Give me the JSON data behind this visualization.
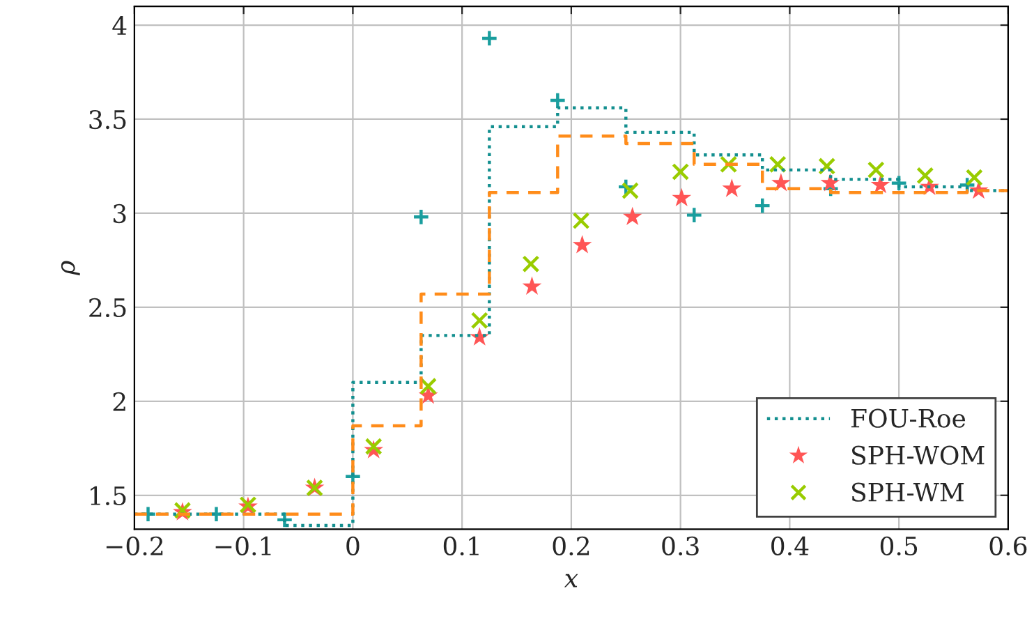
{
  "chart_data": {
    "type": "scatter",
    "xlabel": "x",
    "ylabel": "ρ",
    "xlim": [
      -0.2,
      0.6
    ],
    "ylim": [
      1.32,
      4.1
    ],
    "xticks": [
      {
        "value": -0.2,
        "label": "−0.2"
      },
      {
        "value": -0.1,
        "label": "−0.1"
      },
      0,
      0.1,
      0.2,
      0.3,
      0.4,
      0.5,
      0.6
    ],
    "yticks": [
      1.5,
      2,
      2.5,
      3,
      3.5,
      4
    ],
    "grid": true,
    "legend": "bottom right",
    "series": [
      {
        "name": "FOU-Roe",
        "type": "step",
        "color": "#138f8f",
        "line_style": "dotted",
        "marker": "none",
        "x": [
          -0.2,
          -0.0625,
          0,
          0.0625,
          0.125,
          0.1875,
          0.25,
          0.3125,
          0.375,
          0.4375,
          0.5,
          0.5625,
          0.6
        ],
        "values": [
          1.4,
          1.34,
          2.1,
          2.35,
          3.46,
          3.56,
          3.43,
          3.31,
          3.23,
          3.18,
          3.14,
          3.12,
          3.12
        ]
      },
      {
        "type": "step",
        "color": "#ff8c1a",
        "line_style": "dashed",
        "marker": "none",
        "x": [
          -0.2,
          0,
          0.0625,
          0.125,
          0.1875,
          0.25,
          0.3125,
          0.375,
          0.4375,
          0.5,
          0.5625,
          0.6
        ],
        "values": [
          1.4,
          1.87,
          2.57,
          3.11,
          3.41,
          3.37,
          3.26,
          3.13,
          3.11,
          3.11,
          3.12,
          3.12
        ]
      },
      {
        "color": "#1a9e9e",
        "marker": "cross",
        "x": [
          -0.1875,
          -0.125,
          -0.0625,
          0,
          0.0625,
          0.125,
          0.1875,
          0.25,
          0.3125,
          0.375,
          0.4375,
          0.5,
          0.5625
        ],
        "values": [
          1.4,
          1.4,
          1.37,
          1.6,
          2.98,
          3.93,
          3.6,
          3.14,
          2.99,
          3.04,
          3.13,
          3.16,
          3.15
        ]
      },
      {
        "name": "SPH-WOM",
        "color": "#ff5555",
        "marker": "star",
        "x": [
          -0.156,
          -0.096,
          -0.035,
          0.019,
          0.069,
          0.116,
          0.164,
          0.21,
          0.256,
          0.301,
          0.347,
          0.392,
          0.437,
          0.483,
          0.528,
          0.573
        ],
        "values": [
          1.41,
          1.44,
          1.54,
          1.74,
          2.03,
          2.34,
          2.61,
          2.83,
          2.98,
          3.08,
          3.13,
          3.16,
          3.16,
          3.15,
          3.14,
          3.12
        ]
      },
      {
        "name": "SPH-WM",
        "color": "#99cc00",
        "marker": "x",
        "x": [
          -0.156,
          -0.096,
          -0.035,
          0.019,
          0.069,
          0.116,
          0.163,
          0.209,
          0.254,
          0.3,
          0.344,
          0.389,
          0.434,
          0.479,
          0.524,
          0.569
        ],
        "values": [
          1.42,
          1.45,
          1.54,
          1.76,
          2.08,
          2.43,
          2.73,
          2.96,
          3.12,
          3.22,
          3.26,
          3.26,
          3.25,
          3.23,
          3.2,
          3.19
        ]
      }
    ]
  }
}
